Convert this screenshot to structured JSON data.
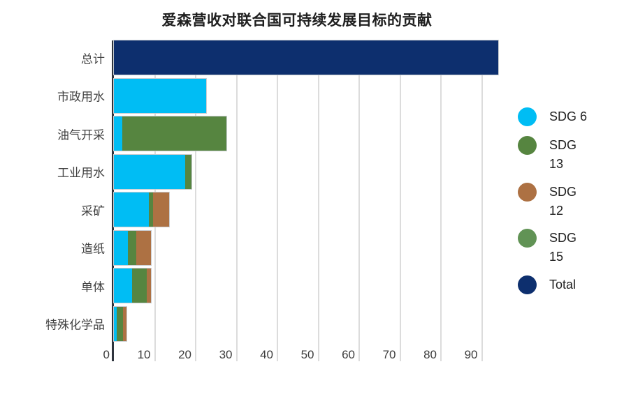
{
  "title": "爱森营收对联合国可持续发展目标的贡献",
  "chart_data": {
    "type": "bar",
    "orientation": "horizontal",
    "stacked": true,
    "title": "爱森营收对联合国可持续发展目标的贡献",
    "categories": [
      "总计",
      "市政用水",
      "油气开采",
      "工业用水",
      "采矿",
      "造纸",
      "单体",
      "特殊化学品"
    ],
    "series": [
      {
        "name": "SDG 6",
        "color": "#00bdf4",
        "values": [
          0,
          22.5,
          2,
          17.5,
          8.5,
          3.5,
          4.5,
          0.7
        ]
      },
      {
        "name": "SDG 13",
        "color": "#568540",
        "values": [
          0,
          0,
          25.5,
          1.5,
          1,
          2,
          3.5,
          1.6
        ]
      },
      {
        "name": "SDG 12",
        "color": "#ad7143",
        "values": [
          0,
          0,
          0,
          0,
          4,
          3.5,
          1,
          0.7
        ]
      },
      {
        "name": "SDG 15",
        "color": "#619355",
        "values": [
          0,
          0,
          0,
          0,
          0,
          0,
          0,
          0
        ]
      },
      {
        "name": "Total",
        "color": "#0d2f6e",
        "values": [
          94,
          0,
          0,
          0,
          0,
          0,
          0,
          0
        ]
      }
    ],
    "x_ticks": [
      0,
      10,
      20,
      30,
      40,
      50,
      60,
      70,
      80,
      90
    ],
    "xlim": [
      0,
      95.7
    ],
    "ylabel": "",
    "xlabel": "",
    "grid": "vertical",
    "legend_position": "right"
  },
  "legend": {
    "items": [
      {
        "label": "SDG 6",
        "color": "#00bdf4"
      },
      {
        "label": "SDG\n13",
        "color": "#568540"
      },
      {
        "label": "SDG\n12",
        "color": "#ad7143"
      },
      {
        "label": "SDG\n15",
        "color": "#619355"
      },
      {
        "label": "Total",
        "color": "#0d2f6e"
      }
    ]
  },
  "x_axis": {
    "tick_labels": [
      "0",
      "10",
      "20",
      "30",
      "40",
      "50",
      "60",
      "70",
      "80",
      "90"
    ]
  }
}
